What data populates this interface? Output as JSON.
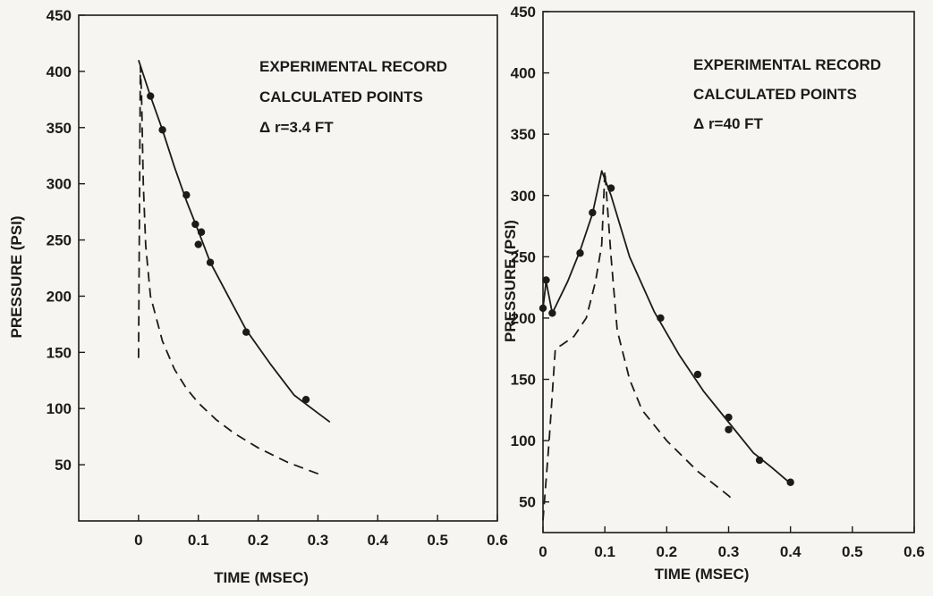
{
  "colors": {
    "ink": "#1b1b1b",
    "paper": "#f6f5f1"
  },
  "chart_data": [
    {
      "type": "line",
      "title": "",
      "xlabel": "TIME (MSEC)",
      "ylabel": "PRESSURE (PSI)",
      "x_ticks": [
        0,
        0.1,
        0.2,
        0.3,
        0.4,
        0.5,
        0.6
      ],
      "x_tick_labels": [
        "0",
        "0.1",
        "0.2",
        "0.3",
        "0.4",
        "0.5",
        "0.6"
      ],
      "y_ticks": [
        50,
        100,
        150,
        200,
        250,
        300,
        350,
        400,
        450
      ],
      "y_tick_labels": [
        "50",
        "100",
        "150",
        "200",
        "250",
        "300",
        "350",
        "400",
        "450"
      ],
      "xlim": [
        -0.1,
        0.6
      ],
      "ylim": [
        0,
        450
      ],
      "grid": false,
      "legend_lines": [
        "EXPERIMENTAL RECORD",
        "CALCULATED POINTS",
        "Δ r=3.4 FT"
      ],
      "legend_position": "top-right",
      "series": [
        {
          "style": "solid",
          "x": [
            0,
            0.02,
            0.04,
            0.06,
            0.08,
            0.1,
            0.12,
            0.15,
            0.18,
            0.22,
            0.26,
            0.3,
            0.32
          ],
          "y": [
            410,
            378,
            348,
            315,
            285,
            258,
            230,
            200,
            170,
            140,
            112,
            96,
            88
          ]
        },
        {
          "style": "dashed",
          "x": [
            0,
            0.003,
            0.005,
            0.008,
            0.012,
            0.02,
            0.04,
            0.06,
            0.08,
            0.1,
            0.13,
            0.16,
            0.2,
            0.25,
            0.3,
            0.31
          ],
          "y": [
            145,
            405,
            380,
            300,
            245,
            200,
            160,
            135,
            118,
            105,
            90,
            78,
            65,
            52,
            42,
            40
          ]
        },
        {
          "style": "points",
          "x": [
            0.02,
            0.04,
            0.08,
            0.095,
            0.105,
            0.1,
            0.12,
            0.18,
            0.28
          ],
          "y": [
            378,
            348,
            290,
            264,
            257,
            246,
            230,
            168,
            108
          ]
        }
      ]
    },
    {
      "type": "line",
      "title": "",
      "xlabel": "TIME (MSEC)",
      "ylabel": "PRESSURE (PSI)",
      "x_ticks": [
        0,
        0.1,
        0.2,
        0.3,
        0.4,
        0.5,
        0.6
      ],
      "x_tick_labels": [
        "0",
        "0.1",
        "0.2",
        "0.3",
        "0.4",
        "0.5",
        "0.6"
      ],
      "y_ticks": [
        50,
        100,
        150,
        200,
        250,
        300,
        350,
        400,
        450
      ],
      "y_tick_labels": [
        "50",
        "100",
        "150",
        "200",
        "250",
        "300",
        "350",
        "400",
        "450"
      ],
      "xlim": [
        0,
        0.6
      ],
      "ylim": [
        25,
        450
      ],
      "grid": false,
      "legend_lines": [
        "EXPERIMENTAL RECORD",
        "CALCULATED POINTS",
        "Δ r=40 FT"
      ],
      "legend_position": "top-right",
      "series": [
        {
          "style": "solid",
          "x": [
            0,
            0.005,
            0.015,
            0.04,
            0.06,
            0.08,
            0.095,
            0.11,
            0.14,
            0.18,
            0.22,
            0.26,
            0.3,
            0.34,
            0.37,
            0.4
          ],
          "y": [
            208,
            230,
            204,
            230,
            255,
            285,
            320,
            300,
            250,
            205,
            170,
            140,
            115,
            90,
            78,
            65
          ]
        },
        {
          "style": "dashed",
          "x": [
            0,
            0.01,
            0.02,
            0.03,
            0.05,
            0.07,
            0.085,
            0.095,
            0.1,
            0.11,
            0.12,
            0.14,
            0.16,
            0.2,
            0.25,
            0.3,
            0.31
          ],
          "y": [
            35,
            100,
            175,
            178,
            185,
            200,
            230,
            260,
            320,
            250,
            190,
            150,
            125,
            100,
            75,
            55,
            50
          ]
        },
        {
          "style": "points",
          "x": [
            0,
            0.005,
            0.015,
            0.06,
            0.08,
            0.11,
            0.19,
            0.25,
            0.3,
            0.3,
            0.35,
            0.4
          ],
          "y": [
            208,
            231,
            204,
            253,
            286,
            306,
            200,
            154,
            119,
            109,
            84,
            66
          ]
        }
      ]
    }
  ]
}
